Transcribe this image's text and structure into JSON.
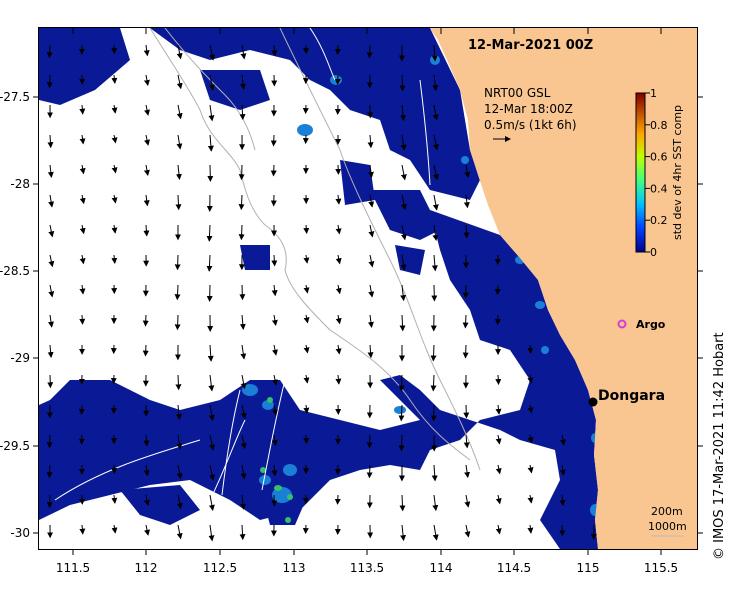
{
  "title": "12-Mar-2021 00Z",
  "current_legend": {
    "line1": "NRT00 GSL",
    "line2": "12-Mar 18:00Z",
    "line3": "0.5m/s (1kt 6h)"
  },
  "colorbar": {
    "label": "std dev of 4hr SST comp",
    "ticks": [
      "0",
      "0.2",
      "0.4",
      "0.6",
      "0.8",
      "1"
    ]
  },
  "places": {
    "argo": "Argo",
    "dongara": "Dongara"
  },
  "scale": {
    "depth1": "200m",
    "depth2": "1000m"
  },
  "x_ticks": [
    "111.5",
    "112",
    "112.5",
    "113",
    "113.5",
    "114",
    "114.5",
    "115",
    "115.5"
  ],
  "y_ticks": [
    "-27.5",
    "-28",
    "-28.5",
    "-29",
    "-29.5",
    "-30"
  ],
  "copyright": "© IMOS 17-Mar-2021 11:42 Hobart",
  "colors": {
    "land": "#f9c590",
    "sst_low": "#0a1a96",
    "sst_mid": "#1a7fd6",
    "sst_high": "#35c06a",
    "argo": "#d83cd8"
  }
}
